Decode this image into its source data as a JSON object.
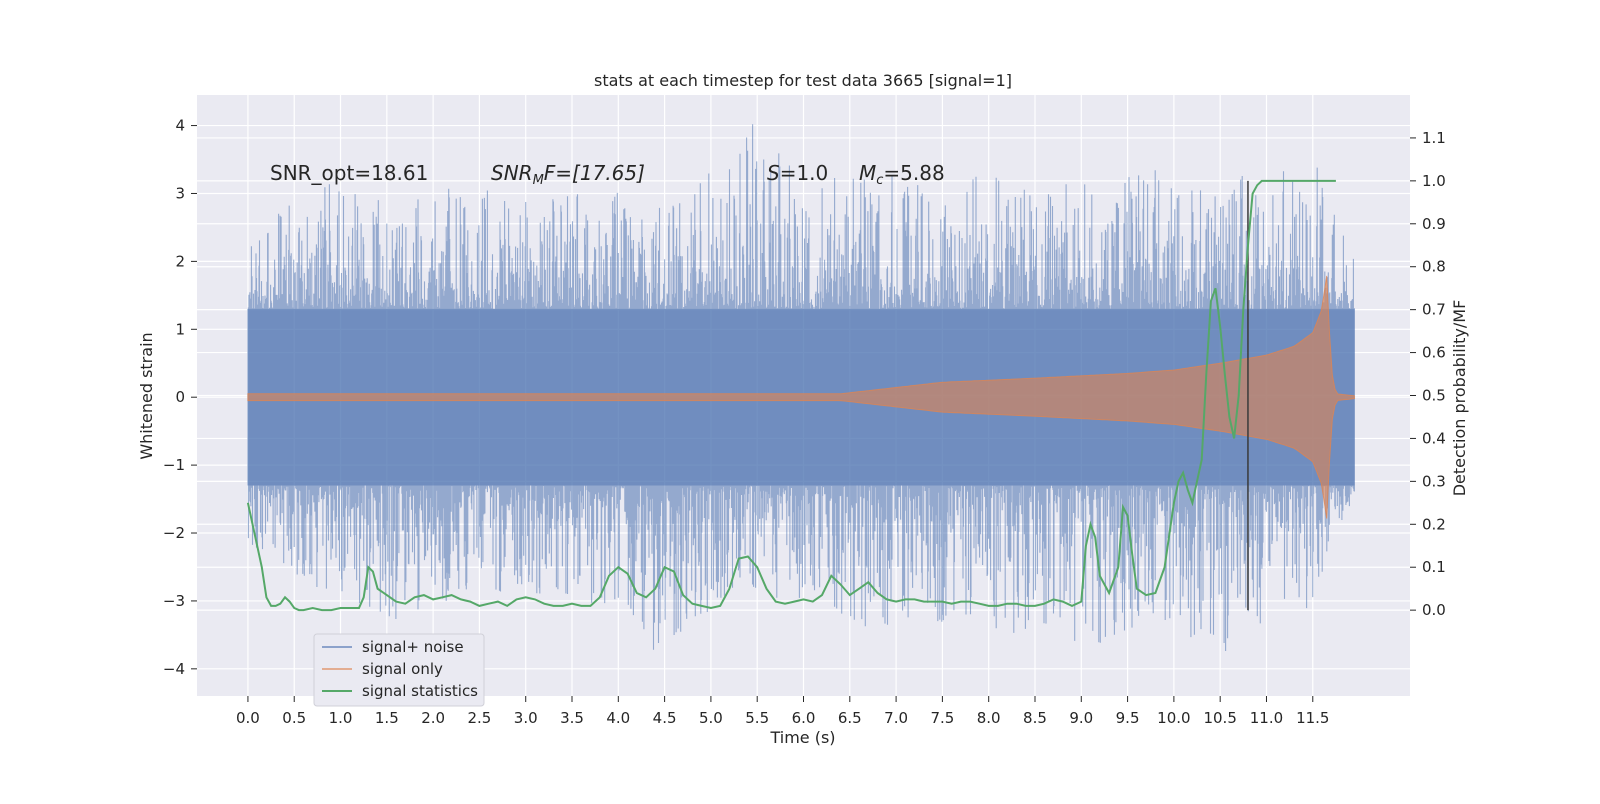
{
  "chart_data": {
    "type": "line",
    "title": "stats at each timestep for test data 3665 [signal=1]",
    "xlabel": "Time (s)",
    "ylabel": "Whitened strain",
    "y2label": "Detection probability/MF",
    "xlim": [
      -0.55,
      12.55
    ],
    "ylim": [
      -4.4,
      4.45
    ],
    "y2lim": [
      -0.2,
      1.2
    ],
    "x_ticks": [
      0.0,
      0.5,
      1.0,
      1.5,
      2.0,
      2.5,
      3.0,
      3.5,
      4.0,
      4.5,
      5.0,
      5.5,
      6.0,
      6.5,
      7.0,
      7.5,
      8.0,
      8.5,
      9.0,
      9.5,
      10.0,
      10.5,
      11.0,
      11.5
    ],
    "x_tick_labels": [
      "0.0",
      "0.5",
      "1.0",
      "1.5",
      "2.0",
      "2.5",
      "3.0",
      "3.5",
      "4.0",
      "4.5",
      "5.0",
      "5.5",
      "6.0",
      "6.5",
      "7.0",
      "7.5",
      "8.0",
      "8.5",
      "9.0",
      "9.5",
      "10.0",
      "10.5",
      "11.0",
      "11.5"
    ],
    "y_ticks": [
      4,
      3,
      2,
      1,
      0,
      -1,
      -2,
      -3,
      -4
    ],
    "y_tick_labels": [
      "4",
      "3",
      "2",
      "1",
      "0",
      "−1",
      "−2",
      "−3",
      "−4"
    ],
    "y2_ticks": [
      1.1,
      1.0,
      0.9,
      0.8,
      0.7,
      0.6,
      0.5,
      0.4,
      0.3,
      0.2,
      0.1,
      0.0
    ],
    "y2_tick_labels": [
      "1.1",
      "1.0",
      "0.9",
      "0.8",
      "0.7",
      "0.6",
      "0.5",
      "0.4",
      "0.3",
      "0.2",
      "0.1",
      "0.0"
    ],
    "grid": true,
    "legend_position": "lower-left",
    "annotations": {
      "snr_opt": "SNR_opt=18.61",
      "snr_mf_base": "SNR",
      "snr_mf_sub": "M",
      "snr_mf_rest": "F=[17.65]",
      "s_var": "S",
      "s_val": "=1.0",
      "mc_var": "M",
      "mc_sub": "c",
      "mc_val": "=5.88"
    },
    "vline_x": 10.8,
    "series": [
      {
        "name": "signal+ noise",
        "color": "#4c72b0",
        "axis": "left",
        "x_range": [
          0.0,
          11.95
        ],
        "envelope_typical": 1.3,
        "x": [
          0.0,
          0.8,
          1.6,
          2.4,
          3.2,
          4.0,
          4.4,
          5.2,
          5.4,
          6.0,
          6.8,
          7.6,
          8.4,
          9.0,
          9.6,
          10.0,
          10.4,
          10.8,
          11.2,
          11.5,
          11.95
        ],
        "upper": [
          2.4,
          3.2,
          3.0,
          3.1,
          2.9,
          3.1,
          2.8,
          3.5,
          4.1,
          3.2,
          3.3,
          3.3,
          3.2,
          3.2,
          3.4,
          3.3,
          3.1,
          3.3,
          3.4,
          3.6,
          2.0
        ],
        "lower": [
          -2.2,
          -2.9,
          -3.3,
          -2.9,
          -2.9,
          -3.1,
          -3.8,
          -2.9,
          -2.8,
          -3.3,
          -3.4,
          -3.3,
          -3.6,
          -3.6,
          -3.7,
          -3.3,
          -3.9,
          -3.5,
          -3.4,
          -3.1,
          -1.4
        ]
      },
      {
        "name": "signal only",
        "color": "#dd8452",
        "axis": "left",
        "x": [
          0.0,
          6.4,
          7.5,
          8.5,
          9.5,
          10.0,
          10.5,
          11.0,
          11.3,
          11.5,
          11.6,
          11.65,
          11.7,
          11.75,
          11.95
        ],
        "amplitude": [
          0.05,
          0.05,
          0.22,
          0.28,
          0.35,
          0.4,
          0.5,
          0.62,
          0.75,
          0.95,
          1.3,
          1.8,
          0.4,
          0.05,
          0.02
        ]
      },
      {
        "name": "signal statistics",
        "color": "#55a868",
        "axis": "right",
        "x": [
          0.0,
          0.15,
          0.2,
          0.25,
          0.3,
          0.35,
          0.4,
          0.45,
          0.5,
          0.55,
          0.6,
          0.7,
          0.8,
          0.9,
          1.0,
          1.1,
          1.2,
          1.25,
          1.3,
          1.35,
          1.4,
          1.5,
          1.6,
          1.7,
          1.8,
          1.9,
          2.0,
          2.1,
          2.2,
          2.3,
          2.4,
          2.5,
          2.6,
          2.7,
          2.8,
          2.9,
          3.0,
          3.1,
          3.2,
          3.3,
          3.4,
          3.5,
          3.6,
          3.7,
          3.8,
          3.9,
          4.0,
          4.1,
          4.2,
          4.3,
          4.4,
          4.5,
          4.6,
          4.7,
          4.8,
          4.9,
          5.0,
          5.1,
          5.2,
          5.3,
          5.4,
          5.5,
          5.6,
          5.7,
          5.8,
          5.9,
          6.0,
          6.1,
          6.2,
          6.3,
          6.4,
          6.5,
          6.6,
          6.7,
          6.8,
          6.9,
          7.0,
          7.1,
          7.2,
          7.3,
          7.4,
          7.5,
          7.6,
          7.7,
          7.8,
          7.9,
          8.0,
          8.1,
          8.2,
          8.3,
          8.4,
          8.5,
          8.6,
          8.7,
          8.8,
          8.9,
          9.0,
          9.05,
          9.1,
          9.15,
          9.2,
          9.3,
          9.4,
          9.45,
          9.5,
          9.55,
          9.6,
          9.7,
          9.8,
          9.9,
          10.0,
          10.05,
          10.1,
          10.15,
          10.2,
          10.25,
          10.3,
          10.35,
          10.4,
          10.45,
          10.5,
          10.55,
          10.6,
          10.65,
          10.7,
          10.75,
          10.8,
          10.85,
          10.9,
          10.95,
          11.0,
          11.2,
          11.5,
          11.75
        ],
        "y": [
          0.25,
          0.1,
          0.03,
          0.01,
          0.01,
          0.015,
          0.03,
          0.02,
          0.005,
          0.0,
          0.0,
          0.005,
          0.0,
          0.0,
          0.005,
          0.005,
          0.005,
          0.03,
          0.1,
          0.09,
          0.05,
          0.035,
          0.02,
          0.015,
          0.03,
          0.035,
          0.025,
          0.03,
          0.035,
          0.025,
          0.02,
          0.01,
          0.015,
          0.02,
          0.01,
          0.025,
          0.03,
          0.025,
          0.015,
          0.01,
          0.01,
          0.015,
          0.01,
          0.01,
          0.03,
          0.08,
          0.1,
          0.085,
          0.04,
          0.03,
          0.05,
          0.1,
          0.09,
          0.035,
          0.015,
          0.01,
          0.005,
          0.01,
          0.05,
          0.12,
          0.125,
          0.1,
          0.05,
          0.02,
          0.015,
          0.02,
          0.025,
          0.02,
          0.035,
          0.08,
          0.06,
          0.035,
          0.05,
          0.065,
          0.04,
          0.025,
          0.02,
          0.025,
          0.025,
          0.02,
          0.02,
          0.02,
          0.015,
          0.02,
          0.02,
          0.015,
          0.01,
          0.01,
          0.015,
          0.015,
          0.01,
          0.01,
          0.015,
          0.025,
          0.02,
          0.01,
          0.02,
          0.15,
          0.2,
          0.17,
          0.08,
          0.04,
          0.1,
          0.24,
          0.22,
          0.13,
          0.05,
          0.035,
          0.04,
          0.1,
          0.25,
          0.3,
          0.32,
          0.28,
          0.25,
          0.3,
          0.35,
          0.55,
          0.72,
          0.75,
          0.66,
          0.55,
          0.45,
          0.4,
          0.5,
          0.7,
          0.85,
          0.97,
          0.99,
          1.0,
          1.0,
          1.0,
          1.0,
          1.0
        ]
      }
    ]
  }
}
